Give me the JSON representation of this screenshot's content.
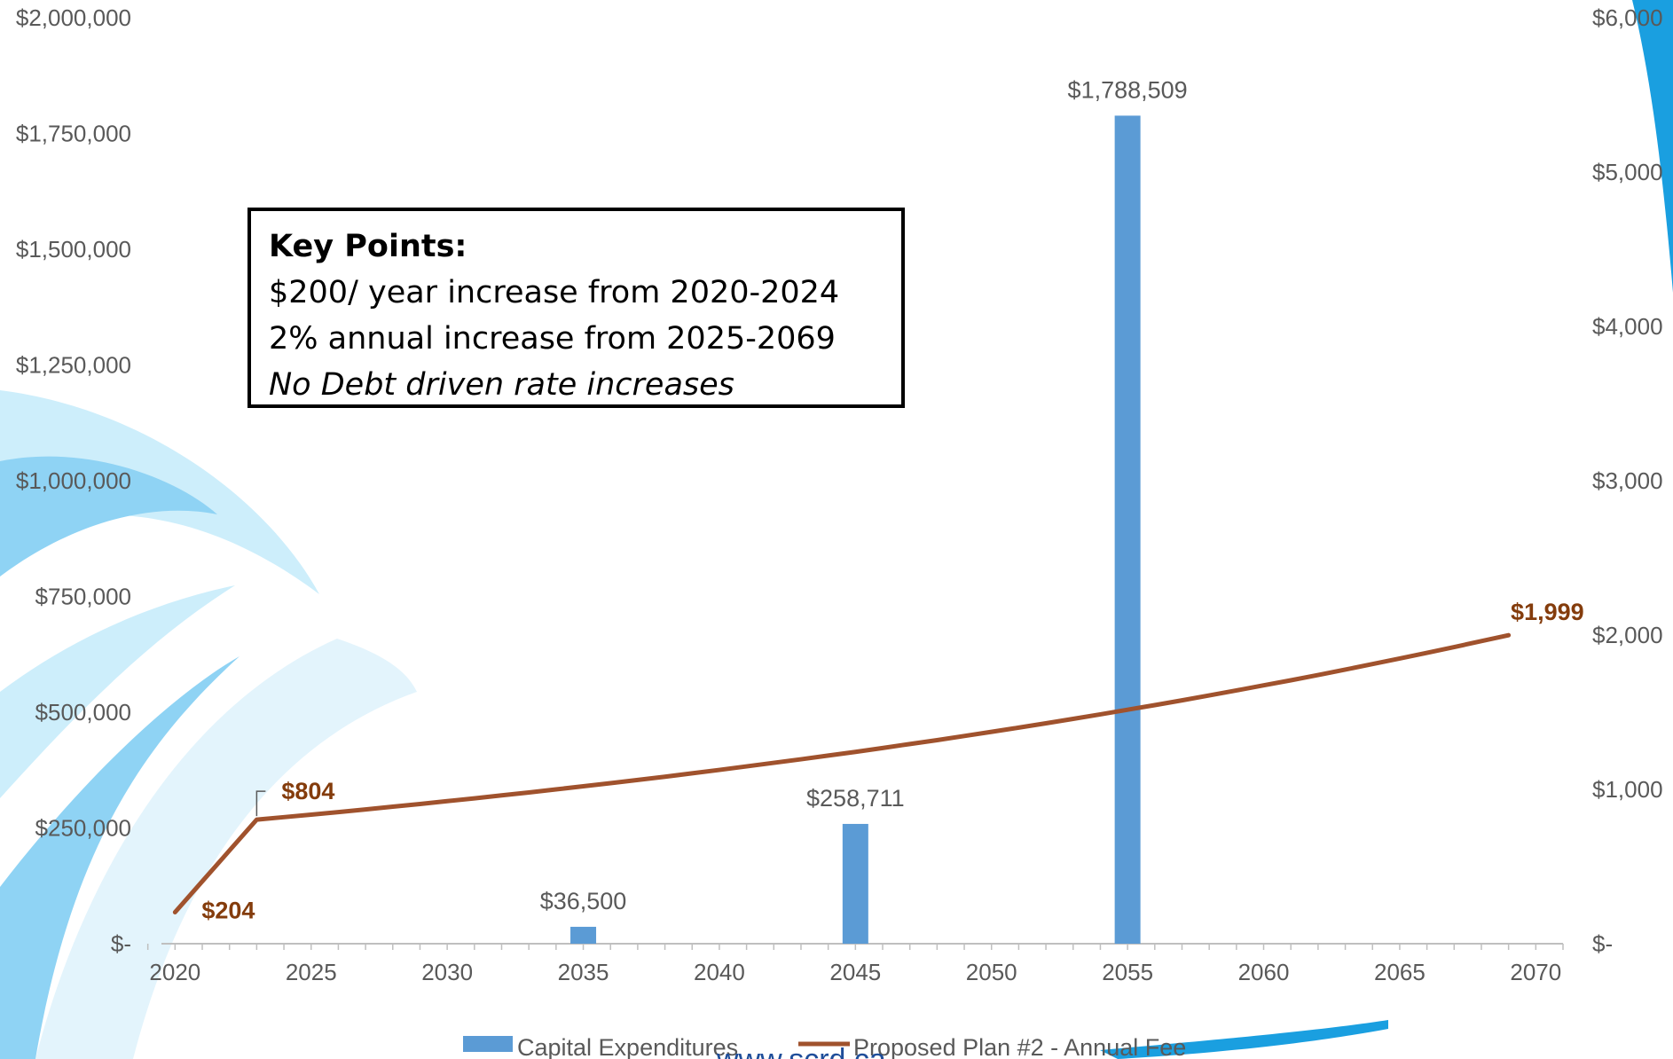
{
  "chart_data": {
    "type": "bar+line",
    "x_ticks": [
      "2020",
      "2025",
      "2030",
      "2035",
      "2040",
      "2045",
      "2050",
      "2055",
      "2060",
      "2065",
      "2070"
    ],
    "x_range": [
      2019.5,
      2071
    ],
    "left_axis": {
      "range": [
        0,
        2000000
      ],
      "ticks": [
        0,
        250000,
        500000,
        750000,
        1000000,
        1250000,
        1500000,
        1750000,
        2000000
      ],
      "tick_labels": [
        "$-",
        "$250,000",
        "$500,000",
        "$750,000",
        "$1,000,000",
        "$1,250,000",
        "$1,500,000",
        "$1,750,000",
        "$2,000,000"
      ]
    },
    "right_axis": {
      "range": [
        0,
        6000
      ],
      "ticks": [
        0,
        1000,
        2000,
        3000,
        4000,
        5000,
        6000
      ],
      "tick_labels": [
        "$-",
        "$1,000",
        "$2,000",
        "$3,000",
        "$4,000",
        "$5,000",
        "$6,000"
      ]
    },
    "grid": false,
    "legend_position": "bottom",
    "series": [
      {
        "name": "Capital Expenditures",
        "type": "bar",
        "axis": "left",
        "color": "#5b9bd5",
        "points": [
          {
            "x": 2035,
            "y": 36500,
            "label": "$36,500"
          },
          {
            "x": 2045,
            "y": 258711,
            "label": "$258,711"
          },
          {
            "x": 2055,
            "y": 1788509,
            "label": "$1,788,509"
          }
        ]
      },
      {
        "name": "Proposed Plan #2 - Annual Fee",
        "type": "line",
        "axis": "right",
        "color": "#a0522d",
        "x": [
          2020,
          2021,
          2022,
          2023,
          2024,
          2025,
          2026,
          2027,
          2028,
          2029,
          2030,
          2031,
          2032,
          2033,
          2034,
          2035,
          2036,
          2037,
          2038,
          2039,
          2040,
          2041,
          2042,
          2043,
          2044,
          2045,
          2046,
          2047,
          2048,
          2049,
          2050,
          2051,
          2052,
          2053,
          2054,
          2055,
          2056,
          2057,
          2058,
          2059,
          2060,
          2061,
          2062,
          2063,
          2064,
          2065,
          2066,
          2067,
          2068,
          2069
        ],
        "values": [
          204,
          404,
          604,
          804,
          820,
          836,
          853,
          870,
          888,
          905,
          924,
          942,
          961,
          980,
          1000,
          1020,
          1040,
          1061,
          1082,
          1104,
          1126,
          1149,
          1172,
          1195,
          1219,
          1243,
          1268,
          1294,
          1319,
          1346,
          1373,
          1400,
          1428,
          1457,
          1486,
          1516,
          1546,
          1577,
          1609,
          1641,
          1674,
          1707,
          1741,
          1776,
          1812,
          1848,
          1885,
          1922,
          1961,
          1999
        ],
        "point_labels": [
          {
            "x": 2020,
            "label": "$204"
          },
          {
            "x": 2023,
            "label": "$804"
          },
          {
            "x": 2069,
            "label": "$1,999"
          }
        ]
      }
    ]
  },
  "key_points": {
    "title": "Key Points:",
    "line1": "$200/ year increase from 2020-2024",
    "line2": "2% annual increase from 2025-2069",
    "line3": "No Debt driven rate increases"
  },
  "footer_url": "www.scrd.ca",
  "colors": {
    "bar": "#5b9bd5",
    "line": "#a0522d",
    "fee_label": "#843c0c",
    "swoosh_light": "#cdeefb",
    "swoosh_mid": "#8fd3f4",
    "swoosh_dark": "#1a9fe0"
  }
}
